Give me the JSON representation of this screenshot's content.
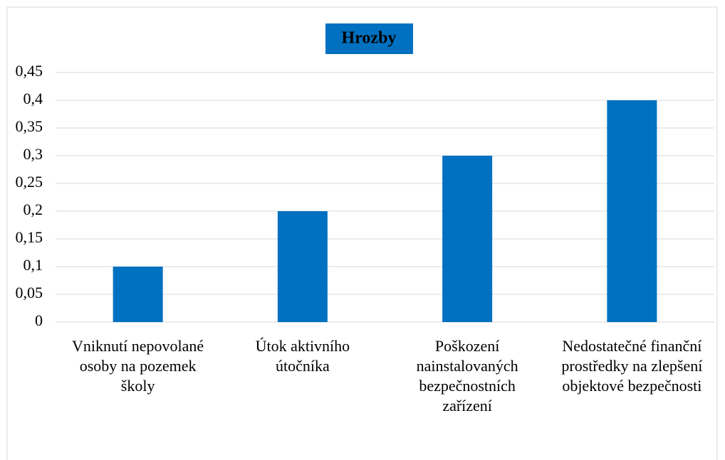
{
  "chart_data": {
    "type": "bar",
    "title": "Hrozby",
    "categories": [
      "Vniknutí nepovolané osoby na pozemek školy",
      "Útok aktivního útočníka",
      "Poškození nainstalovaných bezpečnostních zařízení",
      "Nedostatečné finanční prostředky na zlepšení objektové bezpečnosti"
    ],
    "values": [
      0.1,
      0.2,
      0.3,
      0.4
    ],
    "color": "#0070c0",
    "ylim": [
      0,
      0.45
    ],
    "yticks": [
      0,
      {
        "value": 0.05,
        "label": "0,05"
      },
      {
        "value": 0.1,
        "label": "0,1"
      },
      {
        "value": 0.15,
        "label": "0,15"
      },
      {
        "value": 0.2,
        "label": "0,2"
      },
      {
        "value": 0.25,
        "label": "0,25"
      },
      {
        "value": 0.3,
        "label": "0,3"
      },
      {
        "value": 0.35,
        "label": "0,35"
      },
      {
        "value": 0.4,
        "label": "0,4"
      },
      {
        "value": 0.45,
        "label": "0,45"
      }
    ],
    "grid": true
  }
}
